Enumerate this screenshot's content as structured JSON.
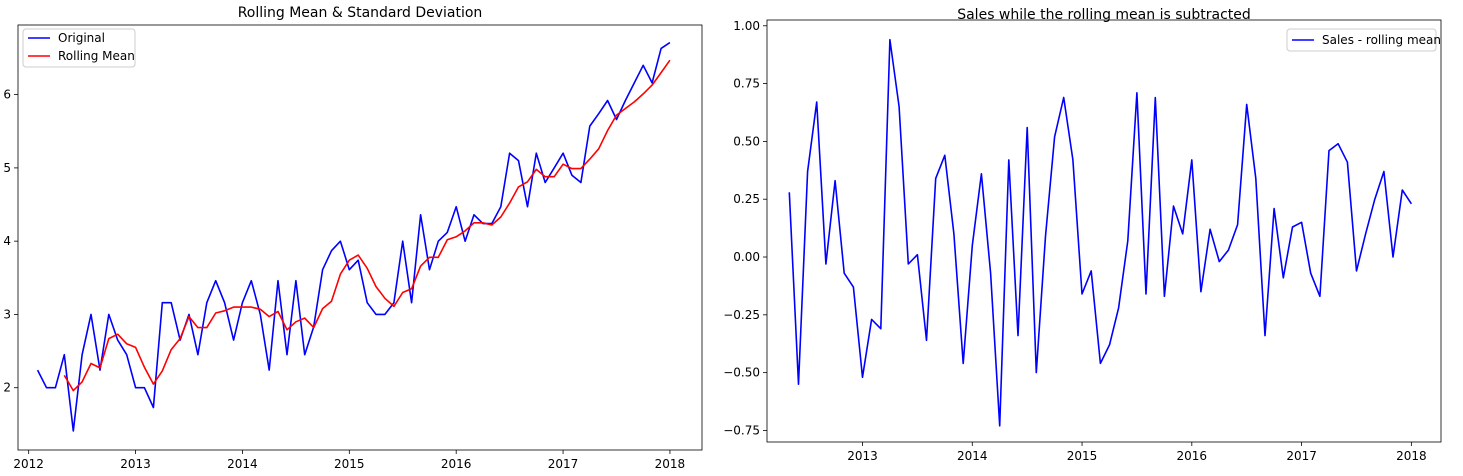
{
  "chart_data": [
    {
      "type": "line",
      "title": "Rolling Mean & Standard Deviation",
      "xlabel": "",
      "ylabel": "",
      "xlim": [
        2011.9,
        2018.3
      ],
      "ylim": [
        1.15,
        6.95
      ],
      "x_ticks": [
        2012,
        2013,
        2014,
        2015,
        2016,
        2017,
        2018
      ],
      "y_ticks": [
        2,
        3,
        4,
        5,
        6
      ],
      "grid": false,
      "legend_position": "top-left",
      "series": [
        {
          "name": "Original",
          "color": "#0000ff",
          "x": [
            2012.083,
            2012.167,
            2012.25,
            2012.333,
            2012.417,
            2012.5,
            2012.583,
            2012.667,
            2012.75,
            2012.833,
            2012.917,
            2013.0,
            2013.083,
            2013.167,
            2013.25,
            2013.333,
            2013.417,
            2013.5,
            2013.583,
            2013.667,
            2013.75,
            2013.833,
            2013.917,
            2014.0,
            2014.083,
            2014.167,
            2014.25,
            2014.333,
            2014.417,
            2014.5,
            2014.583,
            2014.667,
            2014.75,
            2014.833,
            2014.917,
            2015.0,
            2015.083,
            2015.167,
            2015.25,
            2015.333,
            2015.417,
            2015.5,
            2015.583,
            2015.667,
            2015.75,
            2015.833,
            2015.917,
            2016.0,
            2016.083,
            2016.167,
            2016.25,
            2016.333,
            2016.417,
            2016.5,
            2016.583,
            2016.667,
            2016.75,
            2016.833,
            2016.917,
            2017.0,
            2017.083,
            2017.167,
            2017.25,
            2017.333,
            2017.417,
            2017.5,
            2017.583,
            2017.667,
            2017.75,
            2017.833,
            2017.917,
            2018.0
          ],
          "values": [
            2.24,
            2.0,
            2.0,
            2.45,
            1.41,
            2.45,
            3.0,
            2.24,
            3.0,
            2.65,
            2.45,
            2.0,
            2.0,
            1.73,
            3.16,
            3.16,
            2.65,
            3.0,
            2.45,
            3.16,
            3.46,
            3.16,
            2.65,
            3.16,
            3.46,
            3.0,
            2.24,
            3.46,
            2.45,
            3.46,
            2.45,
            2.83,
            3.61,
            3.87,
            4.0,
            3.61,
            3.74,
            3.16,
            3.0,
            3.0,
            3.16,
            4.0,
            3.16,
            4.36,
            3.61,
            4.0,
            4.12,
            4.47,
            4.0,
            4.36,
            4.24,
            4.24,
            4.47,
            5.2,
            5.1,
            4.47,
            5.2,
            4.8,
            5.0,
            5.2,
            4.9,
            4.8,
            5.57,
            5.74,
            5.92,
            5.66,
            5.92,
            6.16,
            6.4,
            6.16,
            6.63,
            6.71
          ]
        },
        {
          "name": "Rolling Mean",
          "color": "#ff0000",
          "x": [
            2012.333,
            2012.417,
            2012.5,
            2012.583,
            2012.667,
            2012.75,
            2012.833,
            2012.917,
            2013.0,
            2013.083,
            2013.167,
            2013.25,
            2013.333,
            2013.417,
            2013.5,
            2013.583,
            2013.667,
            2013.75,
            2013.833,
            2013.917,
            2014.0,
            2014.083,
            2014.167,
            2014.25,
            2014.333,
            2014.417,
            2014.5,
            2014.583,
            2014.667,
            2014.75,
            2014.833,
            2014.917,
            2015.0,
            2015.083,
            2015.167,
            2015.25,
            2015.333,
            2015.417,
            2015.5,
            2015.583,
            2015.667,
            2015.75,
            2015.833,
            2015.917,
            2016.0,
            2016.083,
            2016.167,
            2016.25,
            2016.333,
            2016.417,
            2016.5,
            2016.583,
            2016.667,
            2016.75,
            2016.833,
            2016.917,
            2017.0,
            2017.083,
            2017.167,
            2017.25,
            2017.333,
            2017.417,
            2017.5,
            2017.583,
            2017.667,
            2017.75,
            2017.833,
            2017.917,
            2018.0
          ],
          "values": [
            2.17,
            1.96,
            2.08,
            2.33,
            2.27,
            2.67,
            2.73,
            2.6,
            2.55,
            2.28,
            2.05,
            2.23,
            2.52,
            2.67,
            2.97,
            2.82,
            2.82,
            3.02,
            3.05,
            3.1,
            3.1,
            3.1,
            3.07,
            2.97,
            3.04,
            2.79,
            2.9,
            2.95,
            2.82,
            3.08,
            3.18,
            3.55,
            3.74,
            3.81,
            3.63,
            3.38,
            3.22,
            3.11,
            3.3,
            3.35,
            3.66,
            3.78,
            3.78,
            4.02,
            4.06,
            4.14,
            4.25,
            4.25,
            4.22,
            4.33,
            4.52,
            4.74,
            4.81,
            4.98,
            4.88,
            4.88,
            5.05,
            4.99,
            4.99,
            5.12,
            5.26,
            5.51,
            5.72,
            5.81,
            5.9,
            6.01,
            6.13,
            6.3,
            6.47
          ]
        }
      ]
    },
    {
      "type": "line",
      "title": "Sales while the rolling mean is subtracted",
      "xlabel": "",
      "ylabel": "",
      "xlim": [
        2012.13,
        2018.27
      ],
      "ylim": [
        -0.8,
        1.025
      ],
      "x_ticks": [
        2013,
        2014,
        2015,
        2016,
        2017,
        2018
      ],
      "y_ticks": [
        -0.75,
        -0.5,
        -0.25,
        0.0,
        0.25,
        0.5,
        0.75,
        1.0
      ],
      "y_tick_labels": [
        "−0.75",
        "−0.50",
        "−0.25",
        "0.00",
        "0.25",
        "0.50",
        "0.75",
        "1.00"
      ],
      "grid": false,
      "legend_position": "top-right",
      "series": [
        {
          "name": "Sales - rolling mean",
          "color": "#0000ff",
          "x": [
            2012.333,
            2012.417,
            2012.5,
            2012.583,
            2012.667,
            2012.75,
            2012.833,
            2012.917,
            2013.0,
            2013.083,
            2013.167,
            2013.25,
            2013.333,
            2013.417,
            2013.5,
            2013.583,
            2013.667,
            2013.75,
            2013.833,
            2013.917,
            2014.0,
            2014.083,
            2014.167,
            2014.25,
            2014.333,
            2014.417,
            2014.5,
            2014.583,
            2014.667,
            2014.75,
            2014.833,
            2014.917,
            2015.0,
            2015.083,
            2015.167,
            2015.25,
            2015.333,
            2015.417,
            2015.5,
            2015.583,
            2015.667,
            2015.75,
            2015.833,
            2015.917,
            2016.0,
            2016.083,
            2016.167,
            2016.25,
            2016.333,
            2016.417,
            2016.5,
            2016.583,
            2016.667,
            2016.75,
            2016.833,
            2016.917,
            2017.0,
            2017.083,
            2017.167,
            2017.25,
            2017.333,
            2017.417,
            2017.5,
            2017.583,
            2017.667,
            2017.75,
            2017.833,
            2017.917,
            2018.0
          ],
          "values": [
            0.28,
            -0.55,
            0.37,
            0.67,
            -0.03,
            0.33,
            -0.07,
            -0.13,
            -0.52,
            -0.27,
            -0.31,
            0.94,
            0.65,
            -0.03,
            0.01,
            -0.36,
            0.34,
            0.44,
            0.1,
            -0.46,
            0.05,
            0.36,
            -0.07,
            -0.73,
            0.42,
            -0.34,
            0.56,
            -0.5,
            0.09,
            0.52,
            0.69,
            0.42,
            -0.16,
            -0.06,
            -0.46,
            -0.38,
            -0.22,
            0.07,
            0.71,
            -0.16,
            0.69,
            -0.17,
            0.22,
            0.1,
            0.42,
            -0.15,
            0.12,
            -0.02,
            0.03,
            0.14,
            0.66,
            0.34,
            -0.34,
            0.21,
            -0.09,
            0.13,
            0.15,
            -0.07,
            -0.17,
            0.46,
            0.49,
            0.41,
            -0.06,
            0.1,
            0.25,
            0.37,
            0.0,
            0.29,
            0.23
          ]
        }
      ]
    }
  ]
}
